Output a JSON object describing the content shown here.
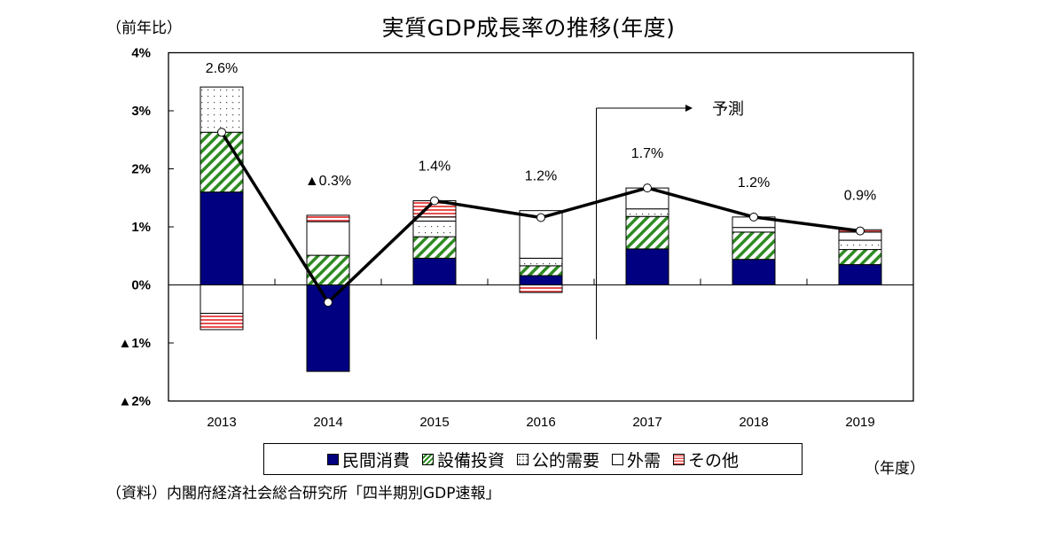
{
  "header": {
    "title": "実質GDP成長率の推移(年度)",
    "y_unit": "（前年比）",
    "x_unit": "（年度）",
    "source": "（資料）内閣府経済社会総合研究所「四半期別GDP速報」",
    "forecast_label": "予測"
  },
  "colors": {
    "private_consumption": "#000080",
    "capex_stripe": "#2e8b22",
    "public_dots": "#555555",
    "other_stripe": "#e85050"
  },
  "chart_data": {
    "type": "bar",
    "stacked": true,
    "title": "実質GDP成長率の推移(年度)",
    "xlabel": "（年度）",
    "ylabel": "（前年比）",
    "ylim": [
      -2,
      4
    ],
    "yticks": [
      4,
      3,
      2,
      1,
      0,
      -1,
      -2
    ],
    "ytick_labels": [
      "4%",
      "3%",
      "2%",
      "1%",
      "0%",
      "▲1%",
      "▲2%"
    ],
    "categories": [
      "2013",
      "2014",
      "2015",
      "2016",
      "2017",
      "2018",
      "2019"
    ],
    "forecast_from": "2017",
    "series": [
      {
        "name": "民間消費",
        "values": [
          1.6,
          -1.49,
          0.46,
          0.16,
          0.62,
          0.44,
          0.35
        ]
      },
      {
        "name": "設備投資",
        "values": [
          1.03,
          0.51,
          0.37,
          0.17,
          0.56,
          0.47,
          0.26
        ]
      },
      {
        "name": "公的需要",
        "values": [
          0.78,
          0.0,
          0.27,
          0.13,
          0.13,
          0.08,
          0.16
        ]
      },
      {
        "name": "外需",
        "values": [
          -0.49,
          0.58,
          0.07,
          0.82,
          0.36,
          0.18,
          0.14
        ]
      },
      {
        "name": "その他",
        "values": [
          -0.28,
          0.11,
          0.28,
          -0.13,
          0.0,
          0.0,
          0.04
        ]
      }
    ],
    "line": {
      "name": "実質GDP成長率",
      "values": [
        2.63,
        -0.3,
        1.45,
        1.16,
        1.67,
        1.17,
        0.93
      ]
    },
    "data_labels": [
      "2.6%",
      "▲0.3%",
      "1.4%",
      "1.2%",
      "1.7%",
      "1.2%",
      "0.9%"
    ],
    "legend_position": "bottom"
  }
}
